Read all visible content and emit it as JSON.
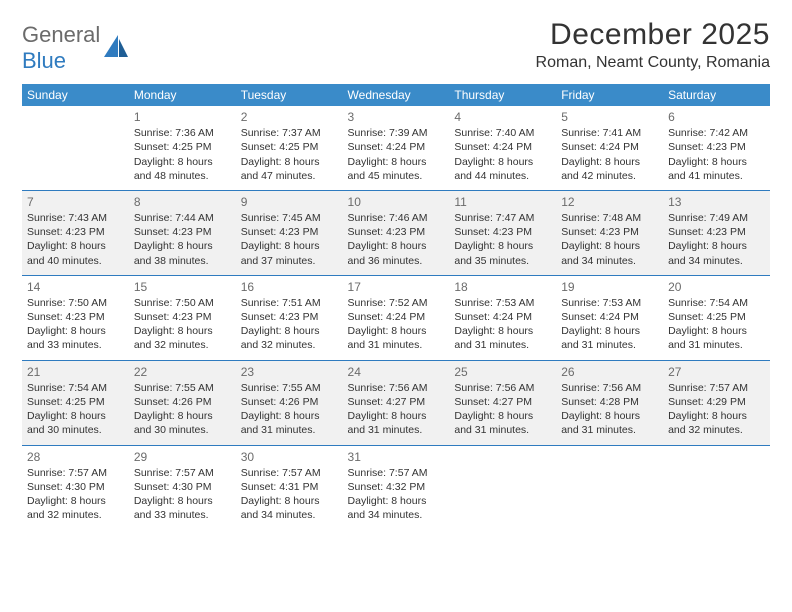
{
  "logo": {
    "part1": "General",
    "part2": "Blue"
  },
  "title": "December 2025",
  "location": "Roman, Neamt County, Romania",
  "colors": {
    "header_bg": "#3a8bc9",
    "header_text": "#ffffff",
    "rule": "#2f7bbf",
    "row_alt": "#f1f1f1",
    "logo_gray": "#6b6b6b",
    "logo_blue": "#2f7bbf"
  },
  "day_headers": [
    "Sunday",
    "Monday",
    "Tuesday",
    "Wednesday",
    "Thursday",
    "Friday",
    "Saturday"
  ],
  "weeks": [
    [
      null,
      {
        "n": "1",
        "sr": "7:36 AM",
        "ss": "4:25 PM",
        "dl": "8 hours and 48 minutes."
      },
      {
        "n": "2",
        "sr": "7:37 AM",
        "ss": "4:25 PM",
        "dl": "8 hours and 47 minutes."
      },
      {
        "n": "3",
        "sr": "7:39 AM",
        "ss": "4:24 PM",
        "dl": "8 hours and 45 minutes."
      },
      {
        "n": "4",
        "sr": "7:40 AM",
        "ss": "4:24 PM",
        "dl": "8 hours and 44 minutes."
      },
      {
        "n": "5",
        "sr": "7:41 AM",
        "ss": "4:24 PM",
        "dl": "8 hours and 42 minutes."
      },
      {
        "n": "6",
        "sr": "7:42 AM",
        "ss": "4:23 PM",
        "dl": "8 hours and 41 minutes."
      }
    ],
    [
      {
        "n": "7",
        "sr": "7:43 AM",
        "ss": "4:23 PM",
        "dl": "8 hours and 40 minutes."
      },
      {
        "n": "8",
        "sr": "7:44 AM",
        "ss": "4:23 PM",
        "dl": "8 hours and 38 minutes."
      },
      {
        "n": "9",
        "sr": "7:45 AM",
        "ss": "4:23 PM",
        "dl": "8 hours and 37 minutes."
      },
      {
        "n": "10",
        "sr": "7:46 AM",
        "ss": "4:23 PM",
        "dl": "8 hours and 36 minutes."
      },
      {
        "n": "11",
        "sr": "7:47 AM",
        "ss": "4:23 PM",
        "dl": "8 hours and 35 minutes."
      },
      {
        "n": "12",
        "sr": "7:48 AM",
        "ss": "4:23 PM",
        "dl": "8 hours and 34 minutes."
      },
      {
        "n": "13",
        "sr": "7:49 AM",
        "ss": "4:23 PM",
        "dl": "8 hours and 34 minutes."
      }
    ],
    [
      {
        "n": "14",
        "sr": "7:50 AM",
        "ss": "4:23 PM",
        "dl": "8 hours and 33 minutes."
      },
      {
        "n": "15",
        "sr": "7:50 AM",
        "ss": "4:23 PM",
        "dl": "8 hours and 32 minutes."
      },
      {
        "n": "16",
        "sr": "7:51 AM",
        "ss": "4:23 PM",
        "dl": "8 hours and 32 minutes."
      },
      {
        "n": "17",
        "sr": "7:52 AM",
        "ss": "4:24 PM",
        "dl": "8 hours and 31 minutes."
      },
      {
        "n": "18",
        "sr": "7:53 AM",
        "ss": "4:24 PM",
        "dl": "8 hours and 31 minutes."
      },
      {
        "n": "19",
        "sr": "7:53 AM",
        "ss": "4:24 PM",
        "dl": "8 hours and 31 minutes."
      },
      {
        "n": "20",
        "sr": "7:54 AM",
        "ss": "4:25 PM",
        "dl": "8 hours and 31 minutes."
      }
    ],
    [
      {
        "n": "21",
        "sr": "7:54 AM",
        "ss": "4:25 PM",
        "dl": "8 hours and 30 minutes."
      },
      {
        "n": "22",
        "sr": "7:55 AM",
        "ss": "4:26 PM",
        "dl": "8 hours and 30 minutes."
      },
      {
        "n": "23",
        "sr": "7:55 AM",
        "ss": "4:26 PM",
        "dl": "8 hours and 31 minutes."
      },
      {
        "n": "24",
        "sr": "7:56 AM",
        "ss": "4:27 PM",
        "dl": "8 hours and 31 minutes."
      },
      {
        "n": "25",
        "sr": "7:56 AM",
        "ss": "4:27 PM",
        "dl": "8 hours and 31 minutes."
      },
      {
        "n": "26",
        "sr": "7:56 AM",
        "ss": "4:28 PM",
        "dl": "8 hours and 31 minutes."
      },
      {
        "n": "27",
        "sr": "7:57 AM",
        "ss": "4:29 PM",
        "dl": "8 hours and 32 minutes."
      }
    ],
    [
      {
        "n": "28",
        "sr": "7:57 AM",
        "ss": "4:30 PM",
        "dl": "8 hours and 32 minutes."
      },
      {
        "n": "29",
        "sr": "7:57 AM",
        "ss": "4:30 PM",
        "dl": "8 hours and 33 minutes."
      },
      {
        "n": "30",
        "sr": "7:57 AM",
        "ss": "4:31 PM",
        "dl": "8 hours and 34 minutes."
      },
      {
        "n": "31",
        "sr": "7:57 AM",
        "ss": "4:32 PM",
        "dl": "8 hours and 34 minutes."
      },
      null,
      null,
      null
    ]
  ],
  "labels": {
    "sunrise": "Sunrise:",
    "sunset": "Sunset:",
    "daylight": "Daylight:"
  }
}
